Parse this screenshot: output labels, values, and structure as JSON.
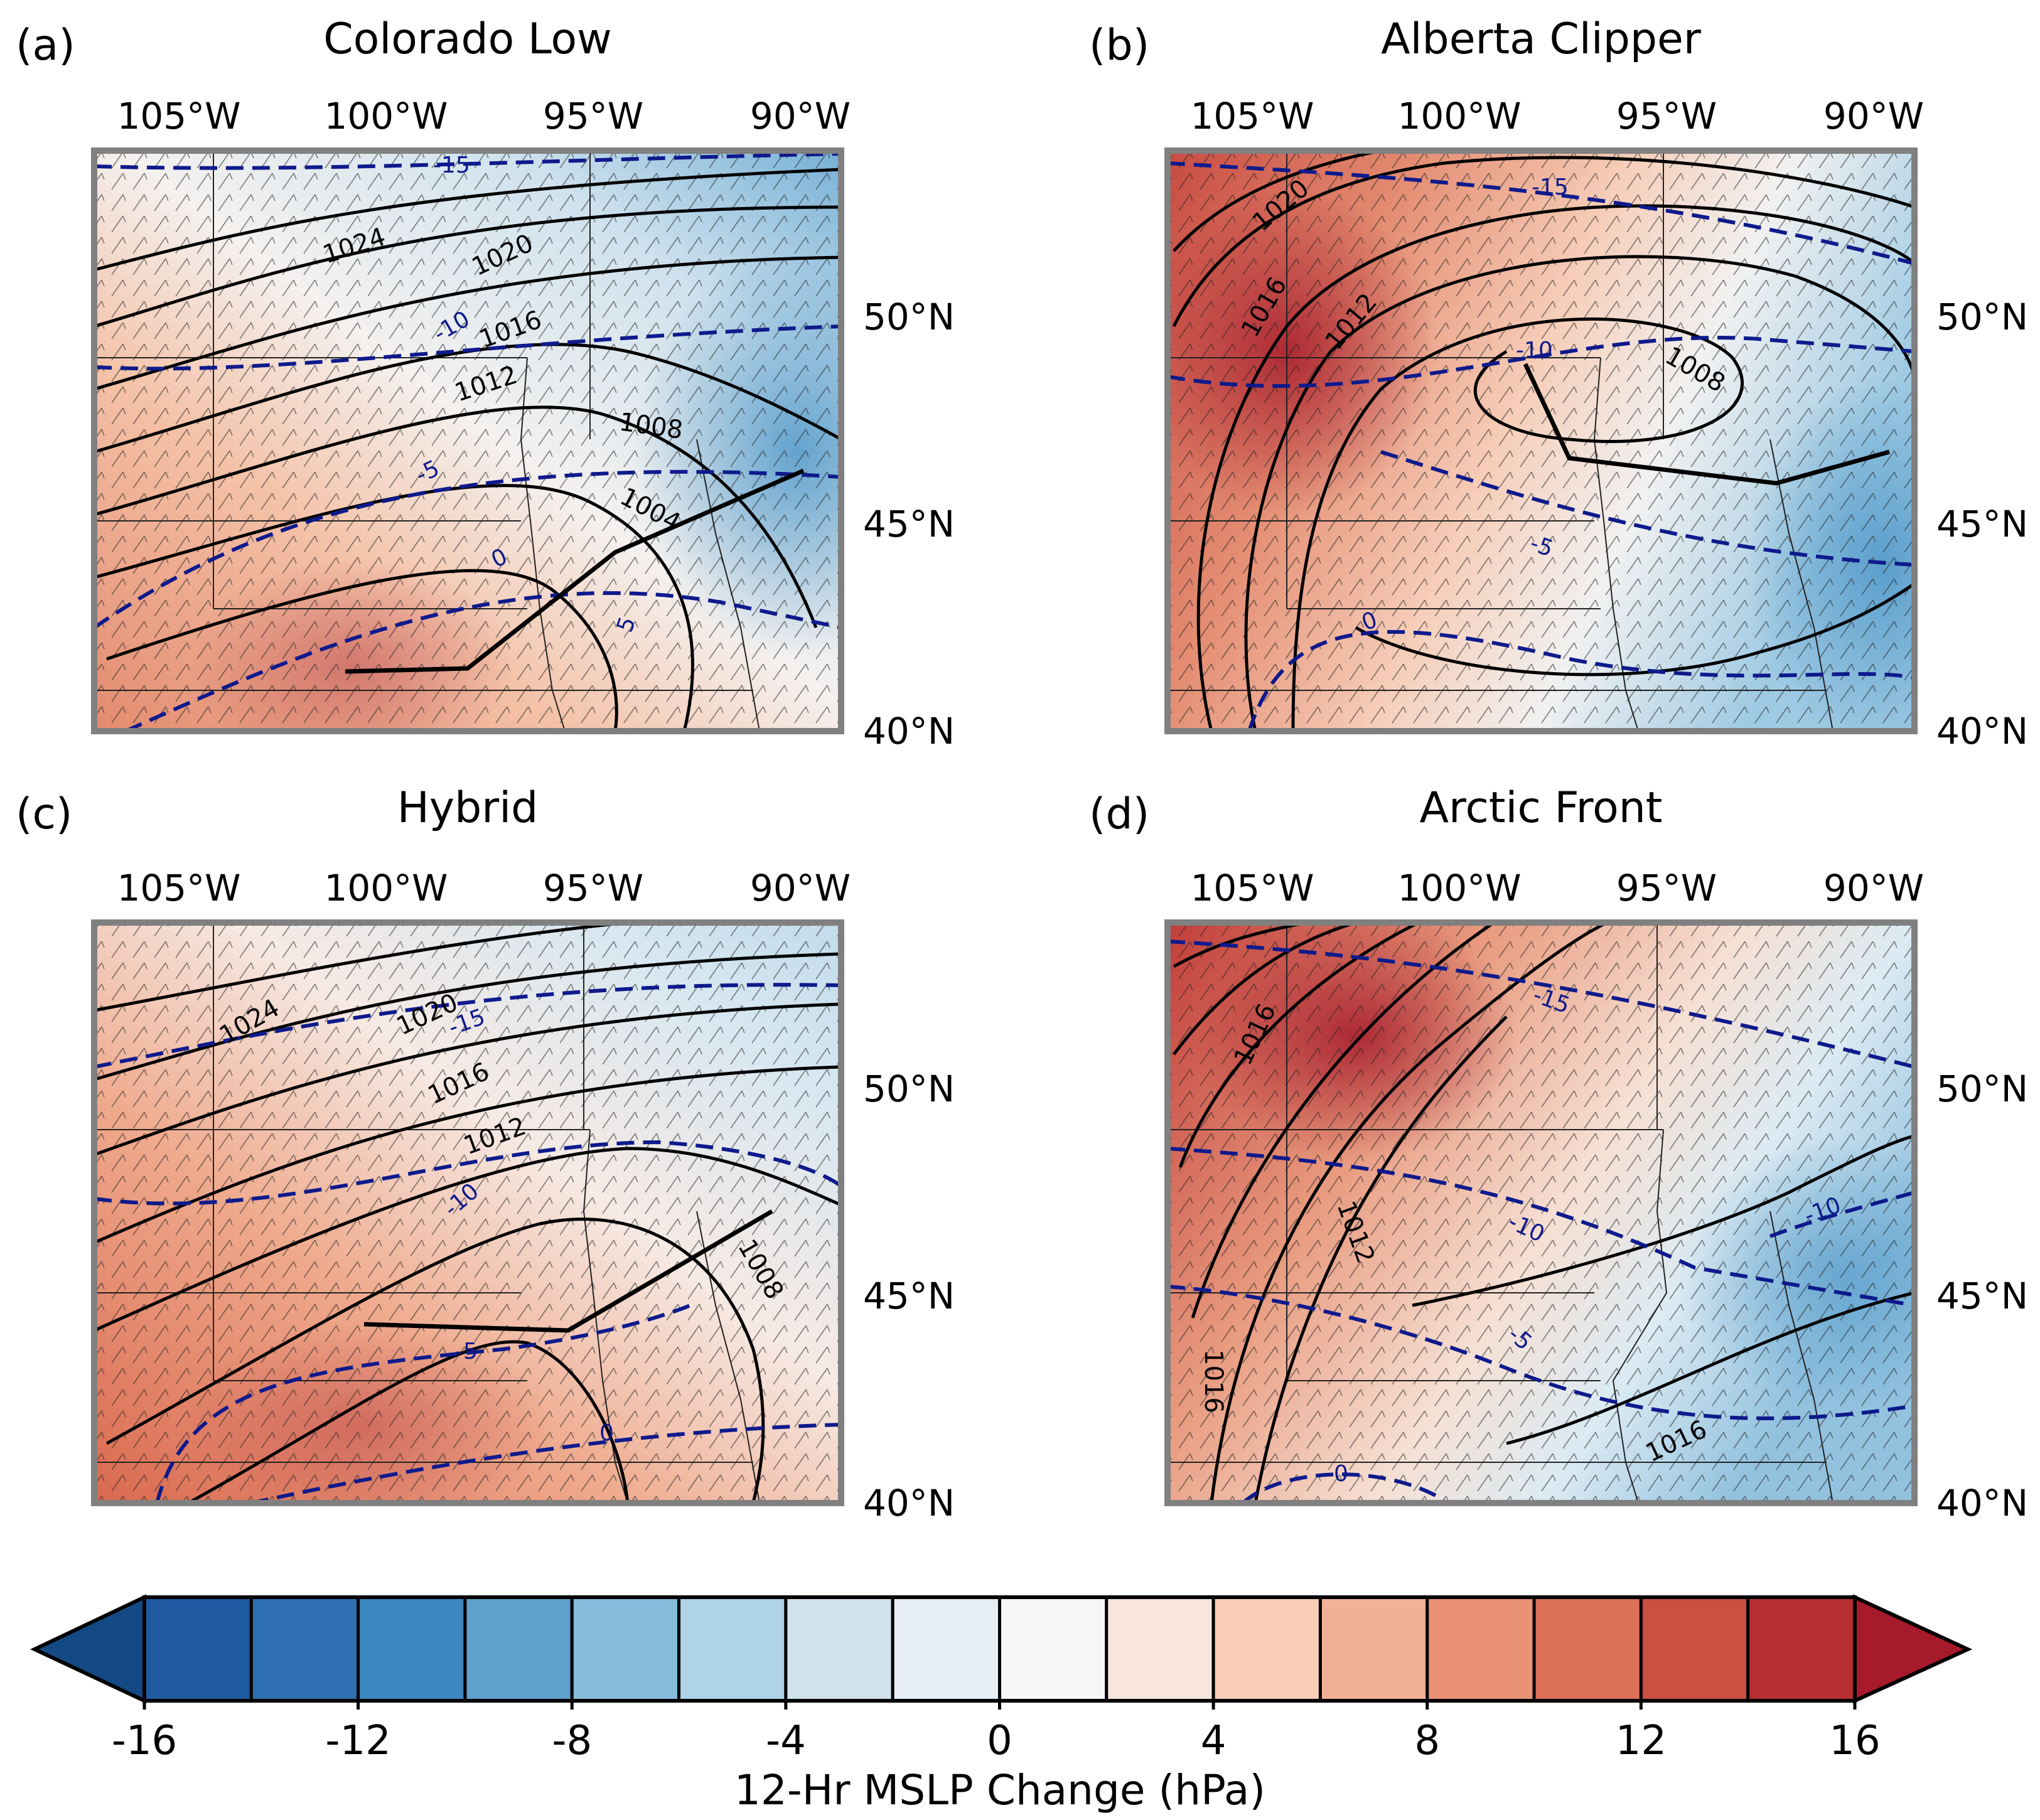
{
  "figure": {
    "axes": {
      "lon_labels": [
        "105°W",
        "100°W",
        "95°W",
        "90°W"
      ],
      "lat_labels": [
        "50°N",
        "45°N",
        "40°N"
      ]
    },
    "panels": [
      {
        "letter": "(a)",
        "title": "Colorado Low",
        "isobars": [
          {
            "label": "1024"
          },
          {
            "label": "1020"
          },
          {
            "label": "1016"
          },
          {
            "label": "1012"
          },
          {
            "label": "1008"
          },
          {
            "label": "1004"
          }
        ],
        "temp_labels": [
          "-15",
          "-10",
          "-5",
          "0",
          "5"
        ]
      },
      {
        "letter": "(b)",
        "title": "Alberta Clipper",
        "isobars": [
          {
            "label": "1020"
          },
          {
            "label": "1016"
          },
          {
            "label": "1012"
          },
          {
            "label": "1008"
          }
        ],
        "temp_labels": [
          "-15",
          "-10",
          "-5",
          "0"
        ]
      },
      {
        "letter": "(c)",
        "title": "Hybrid",
        "isobars": [
          {
            "label": "1024"
          },
          {
            "label": "1020"
          },
          {
            "label": "1016"
          },
          {
            "label": "1012"
          },
          {
            "label": "1008"
          }
        ],
        "temp_labels": [
          "-15",
          "-10",
          "-5",
          "0"
        ]
      },
      {
        "letter": "(d)",
        "title": "Arctic Front",
        "isobars": [
          {
            "label": "1016"
          },
          {
            "label": "1012"
          },
          {
            "label": "1016"
          },
          {
            "label": "1016"
          }
        ],
        "temp_labels": [
          "-15",
          "-10",
          "-5",
          "0",
          "-10"
        ]
      }
    ],
    "colorbar": {
      "label": "12-Hr MSLP Change (hPa)",
      "ticks": [
        "-16",
        "-12",
        "-8",
        "-4",
        "0",
        "4",
        "8",
        "12",
        "16"
      ],
      "colors": [
        "#1f5aa0",
        "#2e70b2",
        "#3d87c0",
        "#5ea2cc",
        "#86bbda",
        "#afd3e7",
        "#cfe3ef",
        "#e6eef4",
        "#f6f6f6",
        "#f8e5dc",
        "#f7cdb8",
        "#f2b097",
        "#ea9274",
        "#dd7158",
        "#cc4f42",
        "#b62f33"
      ],
      "extend_low_color": "#134a85",
      "extend_high_color": "#a61a2b"
    }
  }
}
